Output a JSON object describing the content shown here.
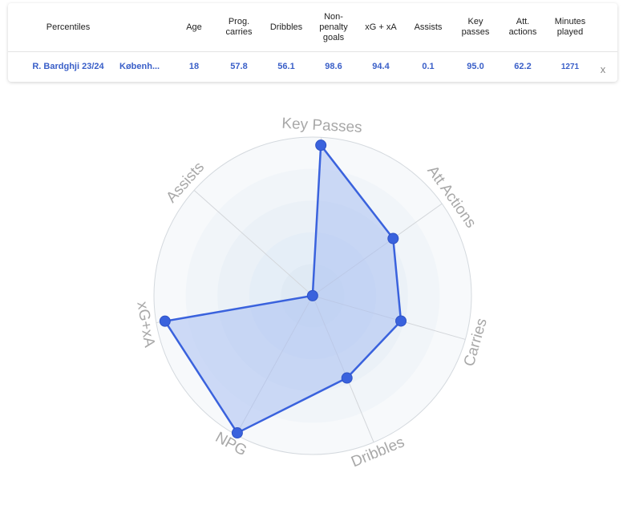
{
  "table": {
    "headers": [
      "Percentiles",
      "Age",
      "Prog. carries",
      "Dribbles",
      "Non-penalty goals",
      "xG + xA",
      "Assists",
      "Key passes",
      "Att. actions",
      "Minutes played"
    ],
    "row": {
      "player": "R. Bardghji 23/24",
      "club": "Københ...",
      "values": [
        "18",
        "57.8",
        "56.1",
        "98.6",
        "94.4",
        "0.1",
        "95.0",
        "62.2",
        "1271"
      ],
      "close": "x"
    }
  },
  "chart_data": {
    "type": "radar",
    "axes": [
      "Key Passes",
      "Att Actions",
      "Carries",
      "Dribbles",
      "NPG",
      "xG+xA",
      "Assists"
    ],
    "values": [
      95.0,
      62.2,
      57.8,
      56.1,
      98.6,
      94.4,
      0.1
    ],
    "range": [
      0,
      100
    ],
    "colors": {
      "line": "#3a62dd",
      "fill": "#aac0f3",
      "point": "#3a62dd",
      "label": "#a8a8a8"
    }
  }
}
